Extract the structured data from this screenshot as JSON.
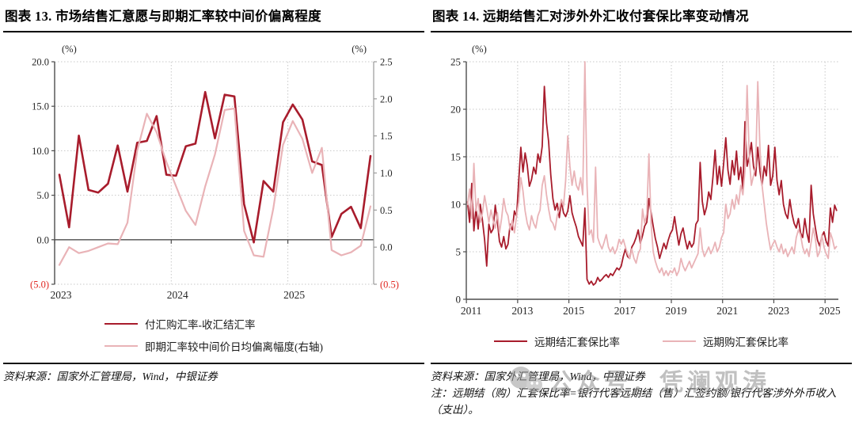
{
  "panels": [
    {
      "title": "图表 13. 市场结售汇意愿与即期汇率较中间价偏离程度",
      "source": "资料来源：国家外汇管理局，Wind，中银证券"
    },
    {
      "title": "图表 14. 远期结售汇对涉外外汇收付套保比率变动情况",
      "source": "资料来源：国家外汇管理局，Wind，中银证券",
      "note": "注：远期结（购）汇套保比率=银行代客远期结（售）汇签约额/银行代客涉外外币收入（支出）。"
    }
  ],
  "watermark": {
    "text": "公众号：凭澜观涛",
    "icon": "wechat-icon"
  },
  "colors": {
    "dark_red": "#A81C2C",
    "pink": "#E9B3B7",
    "negative_label": "#E02620",
    "axis": "#4D4D4D",
    "grid": "#C8C8C8",
    "watermark_gray": "#8D8D8D"
  },
  "chart_data": [
    {
      "type": "line",
      "title": "市场结售汇意愿与即期汇率较中间价偏离程度",
      "x_start": "2023-01",
      "x_frequency": "monthly",
      "x_tick_labels": [
        "2023",
        "2024",
        "2025"
      ],
      "grid": "dotted",
      "legend_position": "bottom",
      "left_axis": {
        "label": "(%)",
        "min": -5,
        "max": 20,
        "ticks": [
          "20.0",
          "15.0",
          "10.0",
          "5.0",
          "0.0",
          "(5.0)"
        ],
        "tick_values": [
          20,
          15,
          10,
          5,
          0,
          -5
        ]
      },
      "right_axis": {
        "label": "(%)",
        "min": -0.5,
        "max": 2.5,
        "ticks": [
          "2.5",
          "2.0",
          "1.5",
          "1.0",
          "0.5",
          "0.0",
          "(0.5)"
        ],
        "tick_values": [
          2.5,
          2.0,
          1.5,
          1.0,
          0.5,
          0.0,
          -0.5
        ]
      },
      "series": [
        {
          "name": "付汇购汇率-收汇结汇率",
          "axis": "left",
          "color": "#A81C2C",
          "values": [
            7.3,
            1.4,
            11.7,
            5.6,
            5.3,
            6.3,
            10.6,
            5.4,
            10.9,
            11.1,
            13.9,
            7.3,
            7.2,
            10.5,
            10.8,
            16.6,
            11.4,
            16.3,
            16.1,
            4.0,
            -0.3,
            6.6,
            5.4,
            13.2,
            15.2,
            13.5,
            8.8,
            8.4,
            0.3,
            2.9,
            3.7,
            1.3,
            9.4
          ]
        },
        {
          "name": "即期汇率较中间价日均偏离幅度(右轴)",
          "axis": "right",
          "color": "#E9B3B7",
          "values": [
            -0.24,
            0.0,
            -0.08,
            -0.05,
            0.0,
            0.05,
            0.04,
            0.33,
            1.3,
            1.8,
            1.55,
            1.15,
            0.82,
            0.49,
            0.3,
            0.82,
            1.25,
            1.85,
            1.87,
            0.22,
            -0.11,
            -0.13,
            0.52,
            1.38,
            1.7,
            1.46,
            1.0,
            1.34,
            -0.04,
            -0.11,
            -0.07,
            0.02,
            0.55
          ]
        }
      ]
    },
    {
      "type": "line",
      "title": "远期结售汇对涉外外汇收付套保比率变动情况",
      "x_start": "2011-01",
      "x_frequency": "monthly",
      "x_tick_labels": [
        "2011",
        "2013",
        "2015",
        "2017",
        "2019",
        "2021",
        "2023",
        "2025"
      ],
      "grid": "dotted",
      "legend_position": "bottom",
      "y_axis": {
        "label": "(%)",
        "min": 0,
        "max": 25,
        "ticks": [
          "0",
          "5",
          "10",
          "15",
          "20",
          "25"
        ],
        "tick_values": [
          0,
          5,
          10,
          15,
          20,
          25
        ]
      },
      "series": [
        {
          "name": "远期结汇套保比率",
          "color": "#A81C2C",
          "values": [
            10.3,
            8.1,
            12.2,
            7.2,
            9.6,
            7.4,
            10.0,
            8.3,
            6.3,
            3.5,
            7.9,
            7.0,
            7.4,
            9.9,
            8.2,
            6.1,
            5.5,
            6.6,
            5.3,
            5.8,
            7.9,
            7.3,
            9.3,
            8.7,
            12.4,
            16.0,
            13.4,
            15.4,
            14.1,
            11.9,
            12.6,
            13.9,
            13.2,
            15.3,
            14.4,
            16.1,
            22.4,
            18.6,
            16.6,
            13.1,
            10.6,
            9.4,
            10.1,
            8.6,
            10.3,
            9.1,
            8.7,
            9.3,
            10.9,
            9.1,
            8.3,
            7.6,
            6.6,
            6.1,
            5.6,
            9.6,
            2.1,
            1.6,
            1.9,
            1.5,
            1.7,
            2.3,
            1.9,
            2.1,
            2.4,
            2.6,
            2.3,
            2.7,
            2.5,
            2.9,
            3.3,
            3.1,
            3.5,
            4.5,
            5.3,
            4.5,
            4.3,
            5.5,
            5.9,
            6.5,
            7.3,
            5.9,
            6.7,
            7.7,
            8.1,
            10.6,
            9.1,
            7.7,
            6.4,
            5.5,
            4.3,
            5.1,
            5.9,
            5.3,
            6.2,
            6.9,
            7.3,
            8.7,
            7.1,
            5.7,
            6.9,
            7.5,
            6.3,
            5.3,
            6.1,
            5.5,
            5.9,
            7.9,
            8.3,
            14.4,
            10.3,
            8.9,
            9.7,
            11.3,
            10.5,
            12.9,
            15.7,
            12.1,
            14.0,
            11.9,
            14.3,
            17.0,
            13.6,
            12.1,
            14.6,
            13.1,
            15.6,
            12.6,
            13.9,
            11.6,
            18.7,
            14.0,
            15.0,
            16.5,
            14.0,
            13.0,
            16.0,
            13.5,
            12.0,
            14.0,
            13.0,
            16.2,
            12.0,
            13.0,
            16.0,
            12.5,
            11.0,
            12.5,
            10.0,
            9.0,
            8.5,
            10.5,
            9.0,
            8.0,
            7.5,
            8.5,
            7.0,
            6.5,
            8.5,
            7.0,
            6.0,
            12.0,
            9.0,
            7.5,
            6.2,
            5.6,
            6.6,
            7.1,
            6.1,
            5.6,
            9.6,
            8.1,
            9.9,
            9.3
          ]
        },
        {
          "name": "远期购汇套保比率",
          "color": "#E9B3B7",
          "values": [
            9.9,
            11.6,
            8.5,
            14.3,
            9.3,
            10.6,
            8.1,
            9.1,
            10.9,
            9.6,
            8.1,
            9.4,
            8.3,
            7.5,
            9.1,
            7.0,
            8.5,
            10.6,
            9.3,
            8.8,
            7.3,
            8.3,
            7.0,
            8.8,
            10.2,
            12.8,
            11.4,
            9.3,
            8.0,
            7.3,
            8.8,
            8.0,
            7.5,
            8.8,
            9.4,
            12.0,
            13.0,
            11.0,
            9.5,
            8.3,
            8.0,
            7.3,
            8.8,
            9.5,
            10.5,
            9.8,
            12.5,
            17.2,
            14.0,
            12.0,
            13.5,
            12.0,
            11.5,
            12.8,
            11.0,
            25.0,
            12.0,
            6.8,
            7.3,
            6.0,
            13.9,
            6.5,
            5.8,
            5.3,
            6.0,
            6.8,
            5.5,
            5.0,
            5.5,
            4.8,
            5.3,
            6.3,
            5.8,
            6.3,
            5.5,
            4.8,
            4.3,
            5.3,
            4.3,
            3.8,
            4.8,
            5.3,
            9.5,
            8.0,
            9.0,
            15.3,
            8.0,
            5.0,
            4.0,
            3.3,
            2.8,
            3.3,
            2.5,
            3.0,
            2.5,
            3.0,
            2.8,
            3.3,
            2.5,
            3.0,
            4.3,
            3.5,
            3.0,
            3.5,
            4.0,
            3.3,
            3.8,
            4.3,
            4.8,
            7.5,
            5.3,
            4.5,
            5.0,
            5.5,
            4.8,
            5.3,
            6.0,
            5.0,
            5.5,
            6.5,
            7.0,
            10.0,
            8.5,
            9.0,
            10.5,
            9.5,
            11.0,
            10.0,
            12.0,
            11.0,
            13.5,
            22.5,
            15.0,
            12.0,
            13.0,
            14.0,
            22.9,
            16.0,
            12.0,
            10.0,
            8.0,
            6.5,
            5.2,
            5.8,
            6.2,
            5.5,
            5.0,
            5.8,
            4.8,
            5.3,
            4.5,
            5.0,
            5.5,
            4.8,
            6.5,
            7.3,
            6.8,
            5.5,
            4.8,
            5.3,
            4.5,
            6.0,
            7.5,
            6.3,
            4.5,
            5.0,
            6.8,
            5.5,
            4.8,
            4.3,
            7.0,
            6.3,
            5.3,
            5.6
          ]
        }
      ]
    }
  ]
}
